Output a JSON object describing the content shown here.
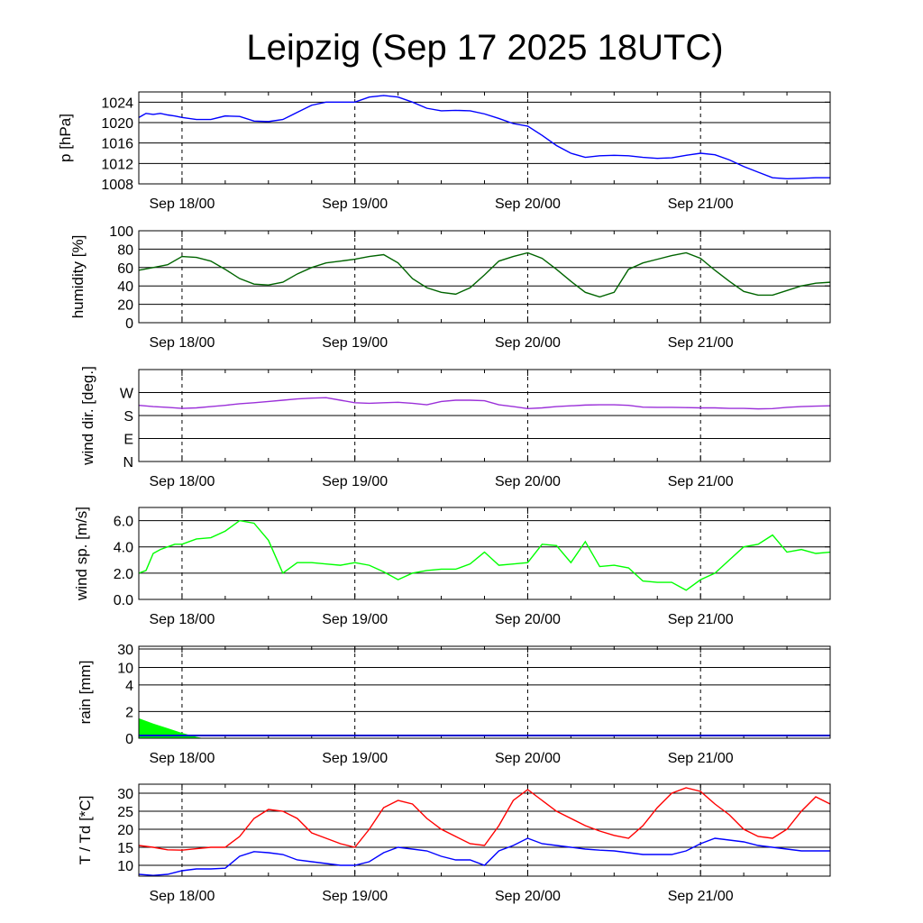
{
  "title": "Leipzig (Sep 17 2025 18UTC)",
  "x_tick_labels": [
    "Sep 18/00",
    "Sep 19/00",
    "Sep 20/00",
    "Sep 21/00"
  ],
  "chart_data": [
    {
      "type": "line",
      "name": "pressure",
      "ylabel": "p [hPa]",
      "ylim": [
        1008,
        1026
      ],
      "yticks": [
        1008,
        1012,
        1016,
        1020,
        1024
      ],
      "ytick_labels": [
        "1008",
        "1012",
        "1016",
        "1020",
        "1024"
      ],
      "x_range_hours": [
        -6,
        90
      ],
      "series": [
        {
          "name": "p",
          "color": "#0000ff",
          "x": [
            -6,
            -5,
            -4,
            -3,
            -2,
            -1,
            0,
            2,
            4,
            6,
            8,
            10,
            12,
            14,
            16,
            18,
            20,
            22,
            24,
            26,
            28,
            30,
            32,
            34,
            36,
            38,
            40,
            42,
            44,
            46,
            48,
            50,
            52,
            54,
            56,
            58,
            60,
            62,
            64,
            66,
            68,
            70,
            72,
            74,
            76,
            78,
            80,
            82,
            84,
            86,
            88,
            90
          ],
          "values": [
            1021,
            1021.8,
            1021.6,
            1021.8,
            1021.5,
            1021.3,
            1021,
            1020.6,
            1020.6,
            1021.3,
            1021.2,
            1020.3,
            1020.2,
            1020.6,
            1022,
            1023.4,
            1024,
            1024,
            1024,
            1025,
            1025.3,
            1025,
            1024,
            1022.8,
            1022.3,
            1022.4,
            1022.3,
            1021.7,
            1020.8,
            1019.8,
            1019.3,
            1017.5,
            1015.5,
            1014,
            1013.2,
            1013.5,
            1013.6,
            1013.5,
            1013.2,
            1013,
            1013.1,
            1013.6,
            1014,
            1013.7,
            1012.7,
            1011.4,
            1010.3,
            1009.2,
            1009,
            1009.1,
            1009.2,
            1009.2
          ]
        }
      ]
    },
    {
      "type": "line",
      "name": "humidity",
      "ylabel": "humidity [%]",
      "ylim": [
        0,
        100
      ],
      "yticks": [
        0,
        20,
        40,
        60,
        80,
        100
      ],
      "ytick_labels": [
        "0",
        "20",
        "40",
        "60",
        "80",
        "100"
      ],
      "x_range_hours": [
        -6,
        90
      ],
      "series": [
        {
          "name": "humidity",
          "color": "#006400",
          "x": [
            -6,
            -4,
            -2,
            0,
            2,
            4,
            6,
            8,
            10,
            12,
            14,
            16,
            18,
            20,
            22,
            24,
            26,
            28,
            30,
            32,
            34,
            36,
            38,
            40,
            42,
            44,
            46,
            48,
            50,
            52,
            54,
            56,
            58,
            60,
            62,
            64,
            66,
            68,
            70,
            72,
            74,
            76,
            78,
            80,
            82,
            84,
            86,
            88,
            90
          ],
          "values": [
            57,
            60,
            63,
            72,
            71,
            67,
            58,
            48,
            42,
            41,
            44,
            53,
            60,
            65,
            67,
            69,
            72,
            74,
            65,
            48,
            38,
            33,
            31,
            38,
            52,
            67,
            72,
            76,
            70,
            58,
            45,
            33,
            28,
            33,
            58,
            65,
            69,
            73,
            76,
            70,
            57,
            45,
            34,
            30,
            30,
            35,
            40,
            43,
            44
          ]
        }
      ]
    },
    {
      "type": "line",
      "name": "wind_direction",
      "ylabel": "wind dir. [deg.]",
      "ylim": [
        0,
        360
      ],
      "yticks": [
        0,
        90,
        180,
        270
      ],
      "ytick_labels": [
        "N",
        "E",
        "S",
        "W"
      ],
      "x_range_hours": [
        -6,
        90
      ],
      "series": [
        {
          "name": "wind direction",
          "color": "#9b30d9",
          "x": [
            -6,
            -4,
            -2,
            0,
            2,
            4,
            6,
            8,
            10,
            12,
            14,
            16,
            18,
            20,
            22,
            24,
            26,
            28,
            30,
            32,
            34,
            36,
            38,
            40,
            42,
            44,
            46,
            48,
            50,
            52,
            54,
            56,
            58,
            60,
            62,
            64,
            66,
            68,
            70,
            72,
            74,
            76,
            78,
            80,
            82,
            84,
            86,
            88,
            90
          ],
          "values": [
            220,
            215,
            212,
            208,
            210,
            215,
            220,
            226,
            230,
            235,
            240,
            245,
            248,
            250,
            240,
            230,
            228,
            230,
            232,
            228,
            222,
            235,
            240,
            240,
            238,
            222,
            215,
            207,
            210,
            215,
            218,
            221,
            222,
            222,
            220,
            213,
            212,
            212,
            211,
            210,
            210,
            208,
            208,
            206,
            207,
            212,
            215,
            217,
            218
          ]
        }
      ]
    },
    {
      "type": "line",
      "name": "wind_speed",
      "ylabel": "wind sp. [m/s]",
      "ylim": [
        0,
        7
      ],
      "yticks": [
        0,
        2,
        4,
        6
      ],
      "ytick_labels": [
        "0.0",
        "2.0",
        "4.0",
        "6.0"
      ],
      "x_range_hours": [
        -6,
        90
      ],
      "series": [
        {
          "name": "wind speed",
          "color": "#00ff00",
          "x": [
            -6,
            -5,
            -4,
            -3,
            -2,
            -1,
            0,
            2,
            4,
            6,
            8,
            10,
            12,
            14,
            16,
            18,
            20,
            22,
            24,
            26,
            28,
            30,
            32,
            34,
            36,
            38,
            40,
            42,
            44,
            46,
            48,
            50,
            52,
            54,
            56,
            58,
            60,
            62,
            64,
            66,
            68,
            70,
            72,
            74,
            76,
            78,
            80,
            82,
            84,
            86,
            88,
            90
          ],
          "values": [
            2.0,
            2.2,
            3.5,
            3.8,
            4.0,
            4.2,
            4.2,
            4.6,
            4.7,
            5.2,
            6.0,
            5.8,
            4.5,
            2.0,
            2.8,
            2.8,
            2.7,
            2.6,
            2.8,
            2.6,
            2.1,
            1.5,
            2.0,
            2.2,
            2.3,
            2.3,
            2.7,
            3.6,
            2.6,
            2.7,
            2.8,
            4.2,
            4.1,
            2.8,
            4.4,
            2.5,
            2.6,
            2.4,
            1.4,
            1.3,
            1.3,
            0.7,
            1.5,
            2.0,
            3.0,
            4.0,
            4.2,
            4.9,
            3.6,
            3.8,
            3.5,
            3.6
          ]
        }
      ]
    },
    {
      "type": "area",
      "name": "rain",
      "ylabel": "rain [mm]",
      "yticks_value": [
        0,
        2,
        4,
        10,
        30
      ],
      "ytick_labels": [
        "0",
        "2",
        "4",
        "10",
        "30"
      ],
      "x_range_hours": [
        -6,
        90
      ],
      "series": [
        {
          "name": "rain",
          "color": "#00ff00",
          "x": [
            -6,
            -4,
            -2,
            0,
            2,
            3,
            90
          ],
          "values": [
            1.5,
            1.1,
            0.75,
            0.4,
            0.1,
            0,
            0
          ]
        }
      ]
    },
    {
      "type": "line",
      "name": "temperature",
      "ylabel": "T / Td [*C]",
      "ylim": [
        7,
        32.5
      ],
      "yticks": [
        10,
        15,
        20,
        25,
        30
      ],
      "ytick_labels": [
        "10",
        "15",
        "20",
        "25",
        "30"
      ],
      "x_range_hours": [
        -6,
        90
      ],
      "series": [
        {
          "name": "T",
          "color": "#ff0000",
          "x": [
            -6,
            -4,
            -2,
            0,
            2,
            4,
            6,
            8,
            10,
            12,
            14,
            16,
            18,
            20,
            22,
            24,
            26,
            28,
            30,
            32,
            34,
            36,
            38,
            40,
            42,
            44,
            46,
            48,
            50,
            52,
            54,
            56,
            58,
            60,
            62,
            64,
            66,
            68,
            70,
            72,
            74,
            76,
            78,
            80,
            82,
            84,
            86,
            88,
            90
          ],
          "values": [
            15.5,
            15,
            14.3,
            14.2,
            14.6,
            15,
            15,
            18,
            23,
            25.5,
            25,
            23,
            19,
            17.5,
            16,
            15,
            20,
            26,
            28,
            27,
            23,
            20,
            18,
            16,
            15.5,
            21,
            28,
            31,
            28,
            25,
            23,
            21,
            19.5,
            18.3,
            17.5,
            21,
            26,
            30,
            31.5,
            30.5,
            27,
            24,
            20,
            18,
            17.5,
            20,
            25,
            29,
            27
          ]
        },
        {
          "name": "Td",
          "color": "#0000ff",
          "x": [
            -6,
            -4,
            -2,
            0,
            2,
            4,
            6,
            8,
            10,
            12,
            14,
            16,
            18,
            20,
            22,
            24,
            26,
            28,
            30,
            32,
            34,
            36,
            38,
            40,
            42,
            44,
            46,
            48,
            50,
            52,
            54,
            56,
            58,
            60,
            62,
            64,
            66,
            68,
            70,
            72,
            74,
            76,
            78,
            80,
            82,
            84,
            86,
            88,
            90
          ],
          "values": [
            7.5,
            7.2,
            7.5,
            8.5,
            9,
            9,
            9.2,
            12.5,
            13.8,
            13.5,
            13,
            11.5,
            11,
            10.5,
            10,
            10,
            11,
            13.5,
            15,
            14.5,
            14,
            12.5,
            11.5,
            11.5,
            10,
            14,
            15.5,
            17.5,
            16,
            15.5,
            15,
            14.5,
            14.2,
            14,
            13.5,
            13,
            13,
            13,
            14,
            16,
            17.5,
            17,
            16.5,
            15.5,
            15,
            14.5,
            14,
            14,
            14
          ]
        }
      ]
    }
  ]
}
